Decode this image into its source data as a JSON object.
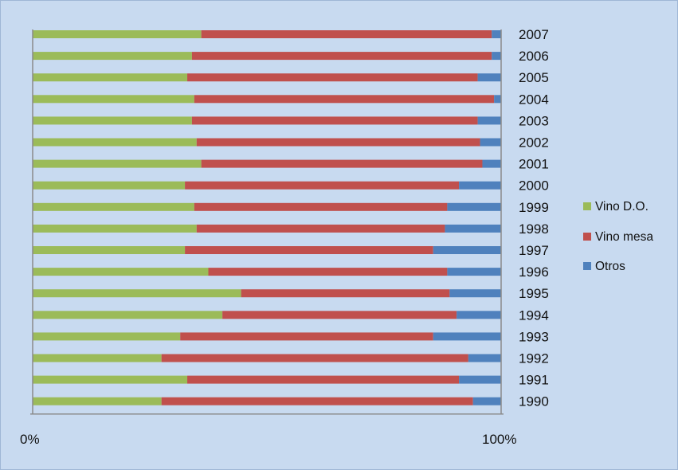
{
  "chart_data": {
    "type": "bar",
    "orientation": "horizontal",
    "stacked": "percent",
    "categories": [
      "2007",
      "2006",
      "2005",
      "2004",
      "2003",
      "2002",
      "2001",
      "2000",
      "1999",
      "1998",
      "1997",
      "1996",
      "1995",
      "1994",
      "1993",
      "1992",
      "1991",
      "1990"
    ],
    "series": [
      {
        "name": "Vino D.O.",
        "color": "#9bbb59",
        "values": [
          36,
          34,
          33,
          34.5,
          34,
          35,
          36,
          32.5,
          34.5,
          35,
          32.5,
          37.5,
          44.5,
          40.5,
          31.5,
          27.5,
          33,
          27.5
        ]
      },
      {
        "name": "Vino mesa",
        "color": "#c0504d",
        "values": [
          62,
          64,
          62,
          64,
          61,
          60.5,
          60,
          58.5,
          54,
          53,
          53,
          51,
          44.5,
          50,
          54,
          65.5,
          58,
          66.5
        ]
      },
      {
        "name": "Otros",
        "color": "#4f81bd",
        "values": [
          2,
          2,
          5,
          1.5,
          5,
          4.5,
          4,
          9,
          11.5,
          12,
          14.5,
          11.5,
          11,
          9.5,
          14.5,
          7,
          9,
          6
        ]
      }
    ],
    "xlim": [
      0,
      100
    ],
    "xticks": [
      "0%",
      "100%"
    ],
    "legend_position": "right",
    "grid": false
  }
}
